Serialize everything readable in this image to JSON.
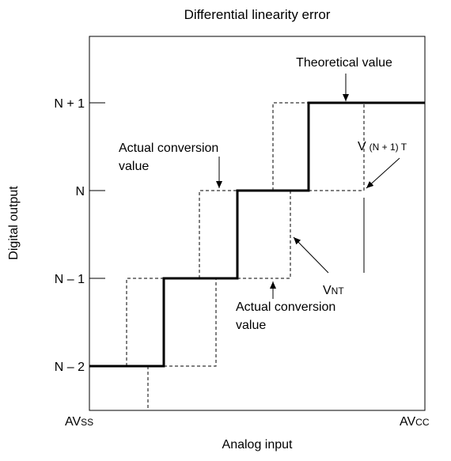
{
  "title": "Differential linearity error",
  "y_axis": {
    "label": "Digital output",
    "levels": [
      "N + 1",
      "N",
      "N – 1",
      "N – 2"
    ]
  },
  "x_axis": {
    "label": "Analog input",
    "left": {
      "main": "AV",
      "sub": "SS"
    },
    "right": {
      "main": "AV",
      "sub": "CC"
    }
  },
  "annotations": {
    "theoretical": "Theoretical value",
    "actual_upper": [
      "Actual conversion",
      "value"
    ],
    "actual_lower": [
      "Actual conversion",
      "value"
    ],
    "v_n1t": {
      "main": "V",
      "sub": "(N + 1) T"
    },
    "v_nt": {
      "main": "V",
      "sub": "NT"
    }
  }
}
